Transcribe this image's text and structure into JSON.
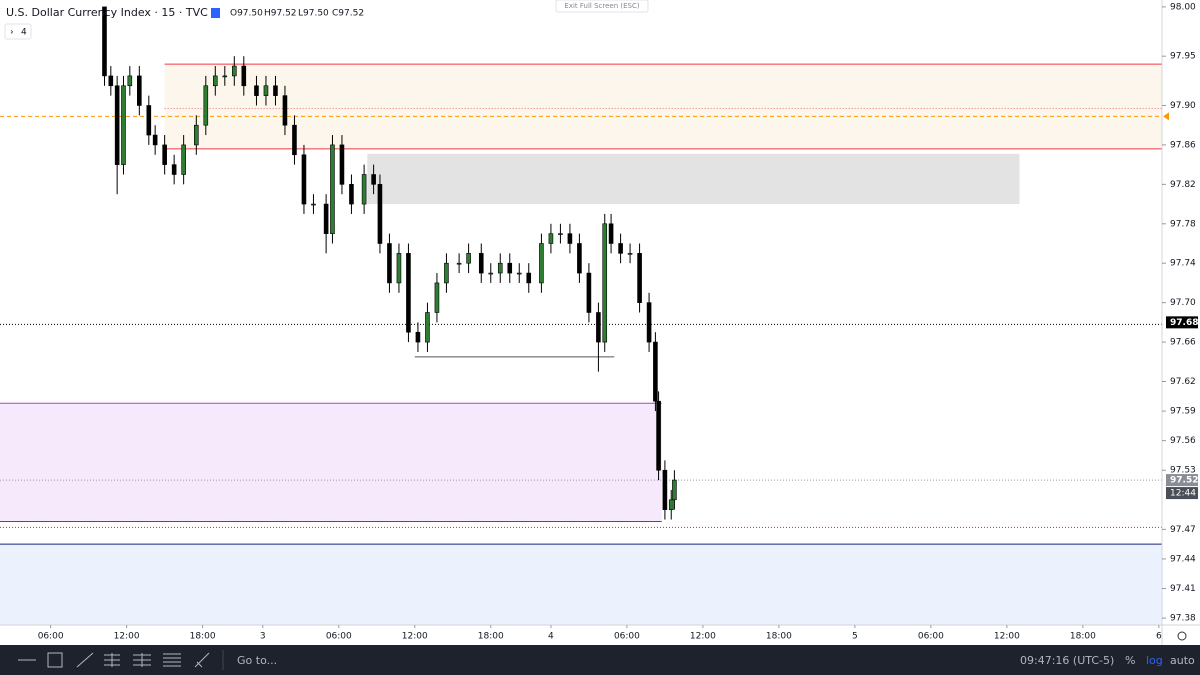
{
  "chart_data": {
    "type": "candlestick",
    "title": "U.S. Dollar Currency Index · 15 · TVC",
    "legend_ohlc": [
      "O97.50",
      "H97.52",
      "L97.50",
      "C97.52"
    ],
    "indicators_toggle": "4",
    "up_color": "#2e7d32",
    "down_color": "#000000",
    "x": [
      33,
      35,
      37,
      39,
      41,
      44,
      47,
      49,
      52,
      55,
      58,
      62,
      65,
      68,
      71,
      74,
      77,
      81,
      84,
      87,
      90,
      93,
      96,
      99,
      103,
      105,
      108,
      111,
      115,
      118,
      120,
      123,
      126,
      129,
      132,
      135,
      138,
      141,
      145,
      148,
      152,
      155,
      158,
      161,
      164,
      167,
      171,
      174,
      177,
      180,
      183,
      186,
      189,
      191,
      193,
      196,
      199,
      202,
      205,
      207,
      208,
      210,
      212,
      213
    ],
    "open": [
      98.0,
      97.93,
      97.92,
      97.84,
      97.92,
      97.93,
      97.9,
      97.87,
      97.86,
      97.84,
      97.83,
      97.86,
      97.88,
      97.92,
      97.93,
      97.93,
      97.94,
      97.92,
      97.91,
      97.92,
      97.91,
      97.88,
      97.85,
      97.8,
      97.8,
      97.77,
      97.86,
      97.82,
      97.8,
      97.83,
      97.82,
      97.76,
      97.72,
      97.75,
      97.67,
      97.66,
      97.69,
      97.72,
      97.74,
      97.74,
      97.75,
      97.73,
      97.73,
      97.74,
      97.73,
      97.73,
      97.72,
      97.76,
      97.77,
      97.77,
      97.76,
      97.73,
      97.69,
      97.66,
      97.78,
      97.76,
      97.75,
      97.75,
      97.7,
      97.66,
      97.6,
      97.53,
      97.49,
      97.5
    ],
    "high": [
      98.0,
      97.94,
      97.93,
      97.93,
      97.94,
      97.94,
      97.91,
      97.88,
      97.87,
      97.85,
      97.87,
      97.89,
      97.93,
      97.94,
      97.94,
      97.95,
      97.95,
      97.93,
      97.93,
      97.93,
      97.92,
      97.89,
      97.86,
      97.81,
      97.81,
      97.87,
      97.87,
      97.83,
      97.84,
      97.84,
      97.83,
      97.77,
      97.76,
      97.76,
      97.68,
      97.7,
      97.73,
      97.75,
      97.75,
      97.76,
      97.76,
      97.74,
      97.75,
      97.75,
      97.74,
      97.74,
      97.77,
      97.78,
      97.78,
      97.78,
      97.77,
      97.74,
      97.7,
      97.79,
      97.79,
      97.77,
      97.76,
      97.76,
      97.71,
      97.67,
      97.61,
      97.54,
      97.51,
      97.53
    ],
    "low": [
      97.92,
      97.91,
      97.81,
      97.83,
      97.91,
      97.89,
      97.86,
      97.85,
      97.83,
      97.82,
      97.82,
      97.85,
      97.87,
      97.91,
      97.92,
      97.92,
      97.91,
      97.9,
      97.9,
      97.9,
      97.87,
      97.84,
      97.79,
      97.79,
      97.75,
      97.76,
      97.81,
      97.79,
      97.79,
      97.81,
      97.75,
      97.71,
      97.71,
      97.66,
      97.65,
      97.65,
      97.68,
      97.71,
      97.73,
      97.73,
      97.72,
      97.72,
      97.72,
      97.72,
      97.72,
      97.71,
      97.71,
      97.75,
      97.76,
      97.75,
      97.72,
      97.68,
      97.63,
      97.65,
      97.75,
      97.74,
      97.74,
      97.69,
      97.65,
      97.59,
      97.52,
      97.48,
      97.48,
      97.49
    ],
    "close": [
      97.93,
      97.92,
      97.84,
      97.92,
      97.93,
      97.9,
      97.87,
      97.86,
      97.84,
      97.83,
      97.86,
      97.88,
      97.92,
      97.93,
      97.93,
      97.94,
      97.92,
      97.91,
      97.92,
      97.91,
      97.88,
      97.85,
      97.8,
      97.8,
      97.77,
      97.86,
      97.82,
      97.8,
      97.83,
      97.82,
      97.76,
      97.72,
      97.75,
      97.67,
      97.66,
      97.69,
      97.72,
      97.74,
      97.74,
      97.75,
      97.73,
      97.73,
      97.74,
      97.73,
      97.73,
      97.72,
      97.76,
      97.77,
      97.77,
      97.76,
      97.73,
      97.69,
      97.66,
      97.78,
      97.76,
      97.75,
      97.75,
      97.7,
      97.66,
      97.6,
      97.53,
      97.49,
      97.5,
      97.52
    ],
    "xlim": [
      0,
      367
    ],
    "xticks": [
      {
        "value": 16,
        "label": "06:00"
      },
      {
        "value": 40,
        "label": "12:00"
      },
      {
        "value": 64,
        "label": "18:00"
      },
      {
        "value": 83,
        "label": "3"
      },
      {
        "value": 107,
        "label": "06:00"
      },
      {
        "value": 131,
        "label": "12:00"
      },
      {
        "value": 155,
        "label": "18:00"
      },
      {
        "value": 174,
        "label": "4"
      },
      {
        "value": 198,
        "label": "06:00"
      },
      {
        "value": 222,
        "label": "12:00"
      },
      {
        "value": 246,
        "label": "18:00"
      },
      {
        "value": 270,
        "label": "5"
      },
      {
        "value": 294,
        "label": "06:00"
      },
      {
        "value": 318,
        "label": "12:00"
      },
      {
        "value": 342,
        "label": "18:00"
      },
      {
        "value": 366,
        "label": "6"
      }
    ],
    "ylim": [
      97.373,
      98.007
    ],
    "yticks": [
      {
        "value": 98.0,
        "label": "98.00"
      },
      97.95,
      {
        "value": 97.9,
        "label": "97.90"
      },
      97.86,
      97.82,
      97.78,
      97.74,
      {
        "value": 97.7,
        "label": "97.70"
      },
      97.66,
      97.62,
      97.59,
      97.56,
      97.53,
      97.47,
      97.44,
      97.41,
      97.38
    ],
    "zones": [
      {
        "x0": 52,
        "x1": 367,
        "y0": 97.856,
        "y1": 97.942,
        "color": "#fdf6ec"
      },
      {
        "x0": 116,
        "x1": 322,
        "y0": 97.8,
        "y1": 97.851,
        "color": "#e3e3e3"
      },
      {
        "x0": 0,
        "x1": 209,
        "y0": 97.478,
        "y1": 97.598,
        "color": "#f6e9fb"
      },
      {
        "x0": 0,
        "x1": 367,
        "y0": 97.373,
        "y1": 97.455,
        "color": "#ebf2fd"
      }
    ],
    "levels": [
      {
        "price": 97.942,
        "x0": 52,
        "x1": 367,
        "color": "#f23645",
        "dash": "none"
      },
      {
        "price": 97.856,
        "x0": 52,
        "x1": 367,
        "color": "#f23645",
        "dash": "none"
      },
      {
        "price": 97.897,
        "x0": 52,
        "x1": 367,
        "color": "#e57373",
        "dash": "1 2"
      },
      {
        "price": 97.889,
        "x0": 0,
        "x1": 367,
        "color": "#ff9800",
        "dash": "4 3"
      },
      {
        "price": 97.678,
        "x0": 0,
        "x1": 367,
        "color": "#000000",
        "dash": "1 2"
      },
      {
        "price": 97.645,
        "x0": 131,
        "x1": 194,
        "color": "#555555",
        "dash": "none"
      },
      {
        "price": 97.598,
        "x0": 0,
        "x1": 209,
        "color": "#ab47bc",
        "dash": "none"
      },
      {
        "price": 97.52,
        "x0": 0,
        "x1": 367,
        "color": "#999999",
        "dash": "1 2"
      },
      {
        "price": 97.478,
        "x0": 0,
        "x1": 209,
        "color": "#8e24aa",
        "dash": "none"
      },
      {
        "price": 97.472,
        "x0": 0,
        "x1": 367,
        "color": "#c62828",
        "dash": "1 2"
      },
      {
        "price": 97.455,
        "x0": 0,
        "x1": 367,
        "color": "#1a237e",
        "dash": "none"
      }
    ],
    "price_labels": [
      {
        "value": 97.68,
        "bg": "#000000"
      },
      {
        "value": 97.52,
        "bg": "#8a8d96"
      }
    ],
    "countdown": "12:44"
  },
  "ui": {
    "exit_fullscreen": "Exit Full Screen (ESC)",
    "goto": "Go to...",
    "clock": "09:47:16 (UTC-5)",
    "percent": "%",
    "log": "log",
    "auto": "auto"
  }
}
